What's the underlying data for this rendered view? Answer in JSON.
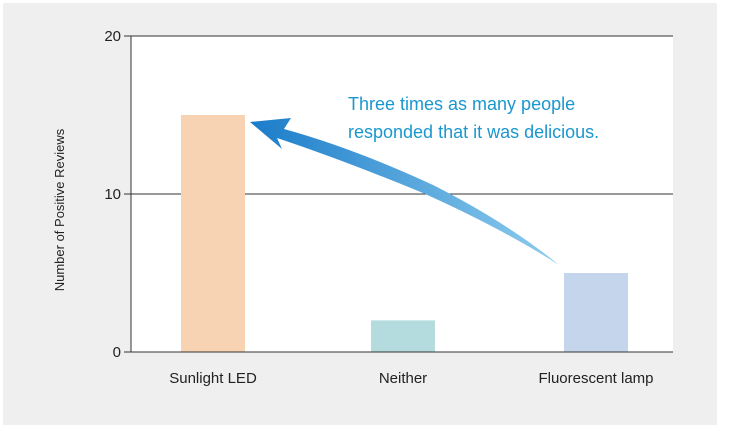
{
  "chart_data": {
    "type": "bar",
    "categories": [
      "Sunlight LED",
      "Neither",
      "Fluorescent lamp"
    ],
    "values": [
      15,
      2,
      5
    ],
    "bar_colors": [
      "#f8d3b3",
      "#b4dcdf",
      "#c5d6ec"
    ],
    "xlabel": "",
    "ylabel": "Number of Positive Reviews",
    "ylim": [
      0,
      20
    ],
    "yticks": [
      0,
      10,
      20
    ],
    "grid": true,
    "annotation": {
      "lines": [
        "Three times as many people",
        "responded that it was delicious."
      ],
      "color": "#1a97cf",
      "arrow_from": "Fluorescent lamp",
      "arrow_to": "Sunlight LED"
    }
  },
  "colors": {
    "background": "#efefef",
    "plot_background": "#ffffff",
    "arrow_start": "#8fcdee",
    "arrow_end": "#1a7cc9"
  }
}
